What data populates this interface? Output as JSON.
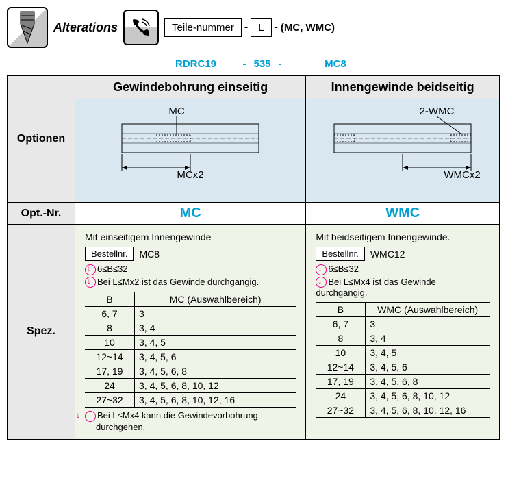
{
  "header": {
    "alterations_label": "Alterations",
    "part_label": "Teile-nummer",
    "l_label": "L",
    "opts_label": "(MC, WMC)",
    "example_part": "RDRC19",
    "example_l": "535",
    "example_opt": "MC8",
    "sep": "-"
  },
  "table": {
    "row_labels": {
      "optionen": "Optionen",
      "opt_nr": "Opt.-Nr.",
      "spez": "Spez."
    },
    "col_headers": {
      "mc": "Gewindebohrung einseitig",
      "wmc": "Innengewinde beidseitig"
    },
    "diagrams": {
      "mc_top_label": "MC",
      "mc_bot_label": "MCx2",
      "wmc_top_label": "2-WMC",
      "wmc_bot_label": "WMCx2"
    },
    "opt_nr": {
      "mc": "MC",
      "wmc": "WMC"
    }
  },
  "spec": {
    "mc": {
      "heading": "Mit einseitigem Innengewinde",
      "bestell_label": "Bestellnr.",
      "bestell_value": "MC8",
      "range": "6≤B≤32",
      "condition": "Bei L≤Mx2 ist das Gewinde durchgängig.",
      "table_header_b": "B",
      "table_header_range": "MC (Auswahlbereich)",
      "rows": [
        {
          "b": "6, 7",
          "r": "3"
        },
        {
          "b": "8",
          "r": "3, 4"
        },
        {
          "b": "10",
          "r": "3, 4, 5"
        },
        {
          "b": "12~14",
          "r": "3, 4, 5, 6"
        },
        {
          "b": "17, 19",
          "r": "3, 4, 5, 6, 8"
        },
        {
          "b": "24",
          "r": "3, 4, 5, 6, 8, 10, 12"
        },
        {
          "b": "27~32",
          "r": "3, 4, 5, 6, 8, 10, 12, 16"
        }
      ],
      "footnote": "Bei L≤Mx4 kann die Gewindevorbohrung durchgehen."
    },
    "wmc": {
      "heading": "Mit beidseitigem Innengewinde.",
      "bestell_label": "Bestellnr.",
      "bestell_value": "WMC12",
      "range": "6≤B≤32",
      "condition": "Bei L≤Mx4 ist das Gewinde durchgängig.",
      "table_header_b": "B",
      "table_header_range": "WMC (Auswahlbereich)",
      "rows": [
        {
          "b": "6, 7",
          "r": "3"
        },
        {
          "b": "8",
          "r": "3, 4"
        },
        {
          "b": "10",
          "r": "3, 4, 5"
        },
        {
          "b": "12~14",
          "r": "3, 4, 5, 6"
        },
        {
          "b": "17, 19",
          "r": "3, 4, 5, 6, 8"
        },
        {
          "b": "24",
          "r": "3, 4, 5, 6, 8, 10, 12"
        },
        {
          "b": "27~32",
          "r": "3, 4, 5, 6, 8, 10, 12, 16"
        }
      ]
    }
  },
  "colors": {
    "accent": "#00a0d2",
    "header_bg": "#e8e8e8",
    "diagram_bg": "#d9e8f0",
    "spec_bg": "#f0f4e8",
    "pink": "#e0008c"
  }
}
